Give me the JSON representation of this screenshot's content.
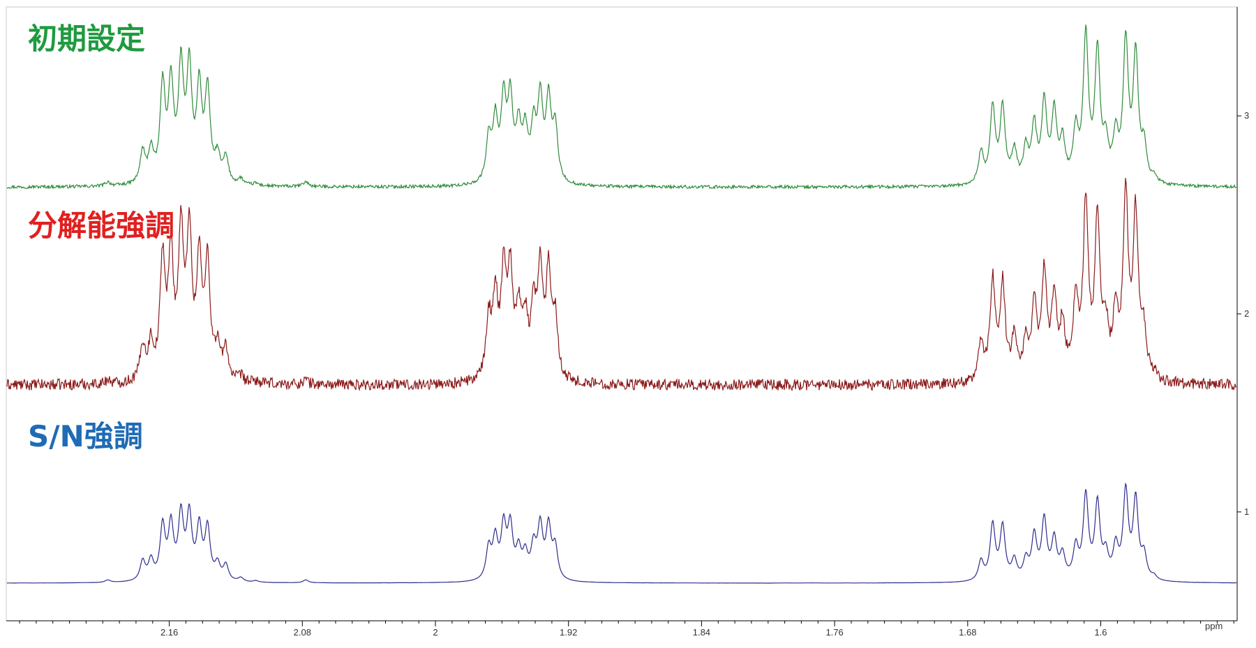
{
  "chart_data": {
    "type": "line",
    "xlabel": "ppm",
    "x_axis": {
      "min": 1.518,
      "max": 2.258,
      "reversed": true,
      "tick_labels": [
        {
          "value": 2.16,
          "label": "2.16"
        },
        {
          "value": 2.08,
          "label": "2.08"
        },
        {
          "value": 2.0,
          "label": "2"
        },
        {
          "value": 1.92,
          "label": "1.92"
        },
        {
          "value": 1.84,
          "label": "1.84"
        },
        {
          "value": 1.76,
          "label": "1.76"
        },
        {
          "value": 1.68,
          "label": "1.68"
        },
        {
          "value": 1.6,
          "label": "1.6"
        }
      ],
      "minor_step": 0.01
    },
    "y_axis": {
      "min": 0.45,
      "max": 3.55,
      "position": "right",
      "tick_labels": [
        {
          "value": 1,
          "label": "1"
        },
        {
          "value": 2,
          "label": "2"
        },
        {
          "value": 3,
          "label": "3"
        }
      ]
    },
    "grid": false,
    "series": [
      {
        "name": "初期設定",
        "color": "#2e8b3a",
        "label_color": "#1f9a3f",
        "baseline": 2.64,
        "noise": 0.008,
        "peaks": [
          [
            2.197,
            0.02
          ],
          [
            2.176,
            0.16
          ],
          [
            2.171,
            0.16
          ],
          [
            2.164,
            0.48
          ],
          [
            2.159,
            0.48
          ],
          [
            2.153,
            0.56
          ],
          [
            2.148,
            0.56
          ],
          [
            2.142,
            0.46
          ],
          [
            2.137,
            0.46
          ],
          [
            2.131,
            0.13
          ],
          [
            2.126,
            0.13
          ],
          [
            2.117,
            0.03
          ],
          [
            2.108,
            0.012
          ],
          [
            2.078,
            0.025
          ],
          [
            1.968,
            0.22
          ],
          [
            1.964,
            0.3
          ],
          [
            1.959,
            0.4
          ],
          [
            1.955,
            0.4
          ],
          [
            1.95,
            0.26
          ],
          [
            1.946,
            0.24
          ],
          [
            1.941,
            0.26
          ],
          [
            1.937,
            0.4
          ],
          [
            1.932,
            0.4
          ],
          [
            1.928,
            0.27
          ],
          [
            1.672,
            0.16
          ],
          [
            1.665,
            0.38
          ],
          [
            1.659,
            0.38
          ],
          [
            1.652,
            0.16
          ],
          [
            1.645,
            0.17
          ],
          [
            1.64,
            0.28
          ],
          [
            1.634,
            0.4
          ],
          [
            1.628,
            0.35
          ],
          [
            1.623,
            0.2
          ],
          [
            1.615,
            0.25
          ],
          [
            1.609,
            0.73
          ],
          [
            1.602,
            0.65
          ],
          [
            1.597,
            0.18
          ],
          [
            1.591,
            0.22
          ],
          [
            1.585,
            0.7
          ],
          [
            1.579,
            0.64
          ],
          [
            1.574,
            0.18
          ],
          [
            1.568,
            0.03
          ]
        ]
      },
      {
        "name": "分解能強調",
        "color": "#8b1a1a",
        "label_color": "#e02020",
        "baseline": 1.64,
        "noise": 0.028,
        "peaks": [
          [
            2.197,
            0.02
          ],
          [
            2.176,
            0.18
          ],
          [
            2.171,
            0.18
          ],
          [
            2.164,
            0.6
          ],
          [
            2.159,
            0.6
          ],
          [
            2.153,
            0.72
          ],
          [
            2.148,
            0.72
          ],
          [
            2.142,
            0.58
          ],
          [
            2.137,
            0.58
          ],
          [
            2.131,
            0.16
          ],
          [
            2.126,
            0.16
          ],
          [
            2.117,
            0.03
          ],
          [
            2.108,
            0.012
          ],
          [
            2.078,
            0.025
          ],
          [
            1.968,
            0.3
          ],
          [
            1.964,
            0.4
          ],
          [
            1.959,
            0.52
          ],
          [
            1.955,
            0.52
          ],
          [
            1.95,
            0.32
          ],
          [
            1.946,
            0.28
          ],
          [
            1.941,
            0.33
          ],
          [
            1.937,
            0.52
          ],
          [
            1.932,
            0.52
          ],
          [
            1.928,
            0.3
          ],
          [
            1.672,
            0.2
          ],
          [
            1.665,
            0.5
          ],
          [
            1.659,
            0.48
          ],
          [
            1.652,
            0.22
          ],
          [
            1.645,
            0.2
          ],
          [
            1.64,
            0.36
          ],
          [
            1.634,
            0.52
          ],
          [
            1.628,
            0.4
          ],
          [
            1.623,
            0.26
          ],
          [
            1.615,
            0.4
          ],
          [
            1.609,
            0.88
          ],
          [
            1.602,
            0.8
          ],
          [
            1.597,
            0.24
          ],
          [
            1.591,
            0.33
          ],
          [
            1.585,
            0.9
          ],
          [
            1.579,
            0.82
          ],
          [
            1.574,
            0.22
          ],
          [
            1.568,
            0.03
          ]
        ]
      },
      {
        "name": "S/N強調",
        "color": "#2c2c8c",
        "label_color": "#1f6bb5",
        "baseline": 0.64,
        "noise": 0.0015,
        "peaks": [
          [
            2.197,
            0.012
          ],
          [
            2.176,
            0.1
          ],
          [
            2.171,
            0.1
          ],
          [
            2.164,
            0.27
          ],
          [
            2.159,
            0.27
          ],
          [
            2.153,
            0.32
          ],
          [
            2.148,
            0.32
          ],
          [
            2.142,
            0.26
          ],
          [
            2.137,
            0.26
          ],
          [
            2.131,
            0.08
          ],
          [
            2.126,
            0.08
          ],
          [
            2.117,
            0.02
          ],
          [
            2.108,
            0.008
          ],
          [
            2.078,
            0.015
          ],
          [
            1.968,
            0.16
          ],
          [
            1.964,
            0.2
          ],
          [
            1.959,
            0.26
          ],
          [
            1.955,
            0.26
          ],
          [
            1.95,
            0.14
          ],
          [
            1.946,
            0.12
          ],
          [
            1.941,
            0.16
          ],
          [
            1.937,
            0.26
          ],
          [
            1.932,
            0.26
          ],
          [
            1.928,
            0.16
          ],
          [
            1.672,
            0.1
          ],
          [
            1.665,
            0.28
          ],
          [
            1.659,
            0.27
          ],
          [
            1.652,
            0.1
          ],
          [
            1.645,
            0.1
          ],
          [
            1.64,
            0.22
          ],
          [
            1.634,
            0.3
          ],
          [
            1.628,
            0.2
          ],
          [
            1.623,
            0.12
          ],
          [
            1.615,
            0.16
          ],
          [
            1.609,
            0.42
          ],
          [
            1.602,
            0.38
          ],
          [
            1.597,
            0.12
          ],
          [
            1.591,
            0.16
          ],
          [
            1.585,
            0.44
          ],
          [
            1.579,
            0.4
          ],
          [
            1.574,
            0.12
          ],
          [
            1.568,
            0.02
          ]
        ]
      }
    ]
  }
}
